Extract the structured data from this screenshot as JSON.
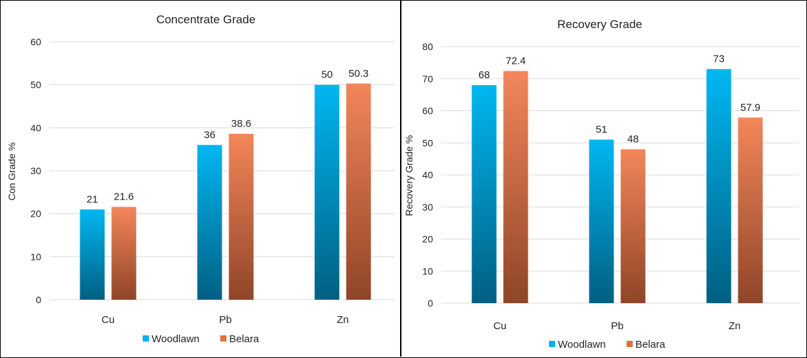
{
  "colors": {
    "woodlawn_top": "#00b7f1",
    "woodlawn_bottom": "#005f82",
    "belara_top": "#f4865a",
    "belara_bottom": "#8f4528",
    "woodlawn_legend": "#00b0f0",
    "belara_legend": "#e0743f"
  },
  "chart_data": [
    {
      "type": "bar",
      "title": "Concentrate Grade",
      "xlabel": "",
      "ylabel": "Con Grade %",
      "categories": [
        "Cu",
        "Pb",
        "Zn"
      ],
      "ylim": [
        0,
        60
      ],
      "yticks": [
        0,
        10,
        20,
        30,
        40,
        50,
        60
      ],
      "grid": true,
      "legend_position": "bottom",
      "series": [
        {
          "name": "Woodlawn",
          "values": [
            21,
            36,
            50
          ],
          "labels": [
            "21",
            "36",
            "50"
          ]
        },
        {
          "name": "Belara",
          "values": [
            21.6,
            38.6,
            50.3
          ],
          "labels": [
            "21.6",
            "38.6",
            "50.3"
          ]
        }
      ]
    },
    {
      "type": "bar",
      "title": "Recovery Grade",
      "xlabel": "",
      "ylabel": "Recovery Grade %",
      "categories": [
        "Cu",
        "Pb",
        "Zn"
      ],
      "ylim": [
        0,
        80
      ],
      "yticks": [
        0,
        10,
        20,
        30,
        40,
        50,
        60,
        70,
        80
      ],
      "grid": true,
      "legend_position": "bottom",
      "series": [
        {
          "name": "Woodlawn",
          "values": [
            68,
            51,
            73
          ],
          "labels": [
            "68",
            "51",
            "73"
          ]
        },
        {
          "name": "Belara",
          "values": [
            72.4,
            48,
            57.9
          ],
          "labels": [
            "72.4",
            "48",
            "57.9"
          ]
        }
      ]
    }
  ]
}
